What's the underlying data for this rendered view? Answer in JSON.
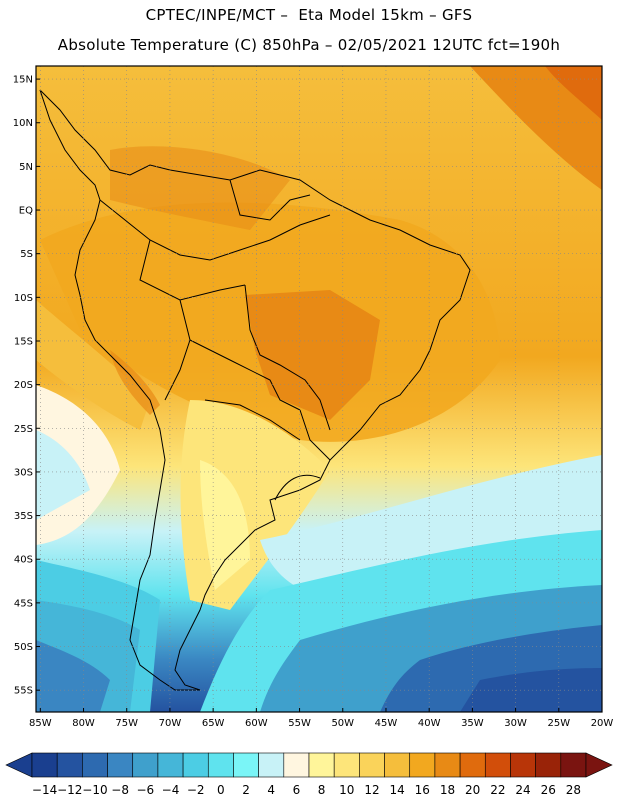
{
  "header": {
    "line1": "CPTEC/INPE/MCT –  Eta Model 15km – GFS",
    "line2": "Absolute Temperature (C) 850hPa – 02/05/2021 12UTC fct=190h"
  },
  "map": {
    "lat_labels": [
      "15N",
      "10N",
      "5N",
      "EQ",
      "5S",
      "10S",
      "15S",
      "20S",
      "25S",
      "30S",
      "35S",
      "40S",
      "45S",
      "50S",
      "55S"
    ],
    "lon_labels": [
      "85W",
      "80W",
      "75W",
      "70W",
      "65W",
      "60W",
      "55W",
      "50W",
      "45W",
      "40W",
      "35W",
      "30W",
      "25W",
      "20W"
    ],
    "lat_range": [
      -57.5,
      16.5
    ],
    "lon_range": [
      -85.5,
      -20
    ]
  },
  "colorbar": {
    "labels": [
      "-14",
      "-12",
      "-10",
      "-8",
      "-6",
      "-4",
      "-2",
      "0",
      "2",
      "4",
      "6",
      "8",
      "10",
      "12",
      "14",
      "16",
      "18",
      "20",
      "22",
      "24",
      "26",
      "28"
    ],
    "colors": [
      "#1a3f8f",
      "#2453a0",
      "#2d6ab0",
      "#3a86c2",
      "#3fa0cc",
      "#45b6d8",
      "#4ccde4",
      "#5fe3ee",
      "#7af5f7",
      "#c8f2f7",
      "#fff6e0",
      "#fff59a",
      "#fde57a",
      "#fad35a",
      "#f5be3c",
      "#f2a81f",
      "#e88a15",
      "#e06b0d",
      "#d24e0a",
      "#b83508",
      "#992308",
      "#7a1410"
    ],
    "low_arrow_color": "#1a3f8f",
    "high_arrow_color": "#7a1410"
  }
}
